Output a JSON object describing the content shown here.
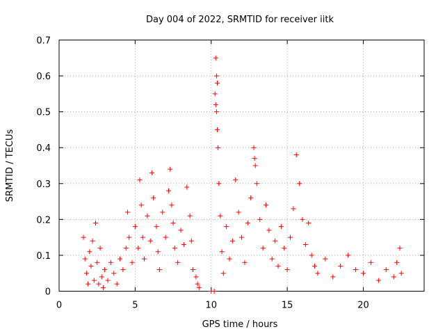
{
  "chart_data": {
    "type": "scatter",
    "title": "Day 004 of 2022, SRMTID for receiver iitk",
    "xlabel": "GPS time / hours",
    "ylabel": "SRMTID / TECUs",
    "xlim": [
      0,
      24
    ],
    "ylim": [
      0,
      0.7
    ],
    "xticks": [
      0,
      5,
      10,
      15,
      20
    ],
    "xtick_labels": [
      "0",
      "5",
      "10",
      "15",
      "20"
    ],
    "yticks": [
      0,
      0.1,
      0.2,
      0.3,
      0.4,
      0.5,
      0.6,
      0.7
    ],
    "ytick_labels": [
      "0",
      "0.1",
      "0.2",
      "0.3",
      "0.4",
      "0.5",
      "0.6",
      "0.7"
    ],
    "grid": true,
    "marker": "plus",
    "series": [
      {
        "name": "SRMTID",
        "color": "#ff0000",
        "points": [
          [
            1.6,
            0.15
          ],
          [
            1.7,
            0.09
          ],
          [
            1.8,
            0.05
          ],
          [
            1.9,
            0.02
          ],
          [
            2.0,
            0.11
          ],
          [
            2.1,
            0.07
          ],
          [
            2.2,
            0.14
          ],
          [
            2.3,
            0.03
          ],
          [
            2.4,
            0.19
          ],
          [
            2.5,
            0.08
          ],
          [
            2.6,
            0.02
          ],
          [
            2.7,
            0.12
          ],
          [
            2.8,
            0.04
          ],
          [
            2.9,
            0.01
          ],
          [
            3.0,
            0.06
          ],
          [
            3.2,
            0.03
          ],
          [
            3.4,
            0.08
          ],
          [
            3.6,
            0.05
          ],
          [
            3.8,
            0.02
          ],
          [
            4.0,
            0.09
          ],
          [
            4.2,
            0.06
          ],
          [
            4.4,
            0.12
          ],
          [
            4.5,
            0.22
          ],
          [
            4.6,
            0.15
          ],
          [
            4.8,
            0.08
          ],
          [
            5.0,
            0.18
          ],
          [
            5.2,
            0.12
          ],
          [
            5.3,
            0.31
          ],
          [
            5.4,
            0.24
          ],
          [
            5.5,
            0.15
          ],
          [
            5.6,
            0.09
          ],
          [
            5.8,
            0.21
          ],
          [
            6.0,
            0.14
          ],
          [
            6.1,
            0.33
          ],
          [
            6.2,
            0.26
          ],
          [
            6.4,
            0.18
          ],
          [
            6.5,
            0.11
          ],
          [
            6.6,
            0.06
          ],
          [
            6.8,
            0.22
          ],
          [
            7.0,
            0.15
          ],
          [
            7.2,
            0.28
          ],
          [
            7.3,
            0.34
          ],
          [
            7.4,
            0.24
          ],
          [
            7.5,
            0.19
          ],
          [
            7.6,
            0.12
          ],
          [
            7.8,
            0.08
          ],
          [
            8.0,
            0.17
          ],
          [
            8.2,
            0.13
          ],
          [
            8.4,
            0.29
          ],
          [
            8.6,
            0.21
          ],
          [
            8.7,
            0.14
          ],
          [
            8.8,
            0.06
          ],
          [
            9.0,
            0.04
          ],
          [
            9.1,
            0.02
          ],
          [
            9.2,
            0.01
          ],
          [
            10.0,
            0.0
          ],
          [
            10.2,
            0.0
          ],
          [
            10.3,
            0.65
          ],
          [
            10.35,
            0.6
          ],
          [
            10.4,
            0.58
          ],
          [
            10.25,
            0.55
          ],
          [
            10.3,
            0.52
          ],
          [
            10.35,
            0.5
          ],
          [
            10.4,
            0.45
          ],
          [
            10.45,
            0.4
          ],
          [
            10.5,
            0.3
          ],
          [
            10.6,
            0.21
          ],
          [
            10.7,
            0.11
          ],
          [
            10.8,
            0.05
          ],
          [
            11.0,
            0.18
          ],
          [
            11.2,
            0.09
          ],
          [
            11.4,
            0.14
          ],
          [
            11.6,
            0.31
          ],
          [
            11.8,
            0.22
          ],
          [
            12.0,
            0.15
          ],
          [
            12.2,
            0.08
          ],
          [
            12.4,
            0.19
          ],
          [
            12.6,
            0.26
          ],
          [
            12.8,
            0.4
          ],
          [
            12.85,
            0.37
          ],
          [
            12.9,
            0.35
          ],
          [
            13.0,
            0.3
          ],
          [
            13.2,
            0.2
          ],
          [
            13.4,
            0.12
          ],
          [
            13.6,
            0.24
          ],
          [
            13.8,
            0.17
          ],
          [
            14.0,
            0.09
          ],
          [
            14.2,
            0.14
          ],
          [
            14.4,
            0.07
          ],
          [
            14.6,
            0.18
          ],
          [
            14.8,
            0.12
          ],
          [
            15.0,
            0.06
          ],
          [
            15.2,
            0.15
          ],
          [
            15.4,
            0.23
          ],
          [
            15.6,
            0.38
          ],
          [
            15.8,
            0.3
          ],
          [
            16.0,
            0.2
          ],
          [
            16.2,
            0.13
          ],
          [
            16.4,
            0.19
          ],
          [
            16.6,
            0.1
          ],
          [
            16.8,
            0.07
          ],
          [
            17.0,
            0.05
          ],
          [
            17.5,
            0.09
          ],
          [
            18.0,
            0.04
          ],
          [
            18.5,
            0.07
          ],
          [
            19.0,
            0.1
          ],
          [
            19.5,
            0.06
          ],
          [
            20.0,
            0.05
          ],
          [
            20.5,
            0.08
          ],
          [
            21.0,
            0.03
          ],
          [
            21.5,
            0.06
          ],
          [
            22.0,
            0.04
          ],
          [
            22.2,
            0.08
          ],
          [
            22.4,
            0.12
          ],
          [
            22.5,
            0.05
          ]
        ]
      }
    ]
  }
}
